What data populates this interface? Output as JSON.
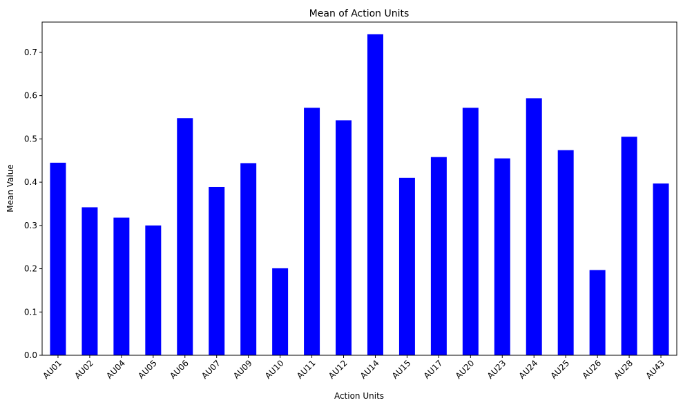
{
  "chart_data": {
    "type": "bar",
    "title": "Mean of Action Units",
    "xlabel": "Action Units",
    "ylabel": "Mean Value",
    "categories": [
      "AU01",
      "AU02",
      "AU04",
      "AU05",
      "AU06",
      "AU07",
      "AU09",
      "AU10",
      "AU11",
      "AU12",
      "AU14",
      "AU15",
      "AU17",
      "AU20",
      "AU23",
      "AU24",
      "AU25",
      "AU26",
      "AU28",
      "AU43"
    ],
    "values": [
      0.445,
      0.342,
      0.318,
      0.3,
      0.548,
      0.389,
      0.444,
      0.201,
      0.572,
      0.543,
      0.742,
      0.41,
      0.458,
      0.572,
      0.455,
      0.594,
      0.474,
      0.197,
      0.505,
      0.397
    ],
    "ylim": [
      0,
      0.77
    ],
    "yticks": [
      "0.0",
      "0.1",
      "0.2",
      "0.3",
      "0.4",
      "0.5",
      "0.6",
      "0.7"
    ],
    "bar_color": "#0000ff",
    "grid": false,
    "legend": false
  }
}
